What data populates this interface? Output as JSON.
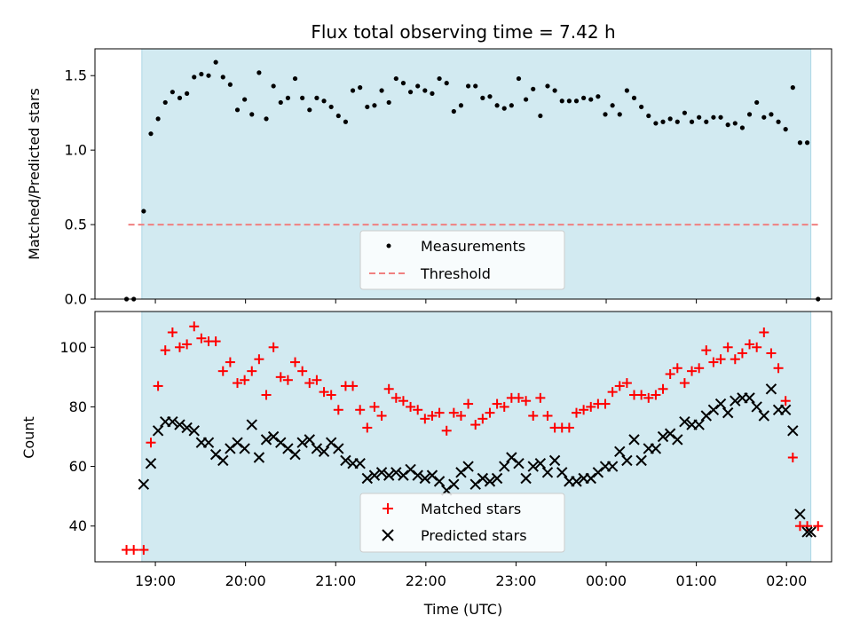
{
  "chart_data": [
    {
      "type": "scatter",
      "title": "Flux total observing time = 7.42 h",
      "xlabel": "",
      "ylabel": "Matched/Predicted stars",
      "ylim": [
        0,
        1.68
      ],
      "yticks": [
        "0.0",
        "0.5",
        "1.0",
        "1.5"
      ],
      "xlim_hours": [
        18.33,
        26.5
      ],
      "observing_window_hours": [
        18.85,
        26.27
      ],
      "observing_window_color": "#add8e6",
      "threshold": {
        "name": "Threshold",
        "value": 0.5,
        "x_range_hours": [
          18.7,
          26.35
        ],
        "color": "#f08080",
        "style": "dashed"
      },
      "legend": [
        "Measurements",
        "Threshold"
      ],
      "legend_position": "lower center",
      "series": [
        {
          "name": "Measurements",
          "color": "#000000",
          "marker": "dot",
          "x_hours": [
            18.68,
            18.76,
            18.87,
            18.95,
            19.03,
            19.11,
            19.19,
            19.27,
            19.35,
            19.43,
            19.51,
            19.59,
            19.67,
            19.75,
            19.83,
            19.91,
            19.99,
            20.07,
            20.15,
            20.23,
            20.31,
            20.39,
            20.47,
            20.55,
            20.63,
            20.71,
            20.79,
            20.87,
            20.95,
            21.03,
            21.11,
            21.19,
            21.27,
            21.35,
            21.43,
            21.51,
            21.59,
            21.67,
            21.75,
            21.83,
            21.91,
            21.99,
            22.07,
            22.15,
            22.23,
            22.31,
            22.39,
            22.47,
            22.55,
            22.63,
            22.71,
            22.79,
            22.87,
            22.95,
            23.03,
            23.11,
            23.19,
            23.27,
            23.35,
            23.43,
            23.51,
            23.59,
            23.67,
            23.75,
            23.83,
            23.91,
            23.99,
            24.07,
            24.15,
            24.23,
            24.31,
            24.39,
            24.47,
            24.55,
            24.63,
            24.71,
            24.79,
            24.87,
            24.95,
            25.03,
            25.11,
            25.19,
            25.27,
            25.35,
            25.43,
            25.51,
            25.59,
            25.67,
            25.75,
            25.83,
            25.91,
            25.99,
            26.07,
            26.15,
            26.23,
            26.35
          ],
          "y": [
            0.0,
            0.0,
            0.59,
            1.11,
            1.21,
            1.32,
            1.39,
            1.35,
            1.38,
            1.49,
            1.51,
            1.5,
            1.59,
            1.49,
            1.44,
            1.27,
            1.34,
            1.24,
            1.52,
            1.21,
            1.43,
            1.32,
            1.35,
            1.48,
            1.35,
            1.27,
            1.35,
            1.33,
            1.29,
            1.23,
            1.19,
            1.4,
            1.42,
            1.29,
            1.3,
            1.4,
            1.32,
            1.48,
            1.45,
            1.39,
            1.43,
            1.4,
            1.38,
            1.48,
            1.45,
            1.26,
            1.3,
            1.43,
            1.43,
            1.35,
            1.36,
            1.3,
            1.28,
            1.3,
            1.48,
            1.34,
            1.41,
            1.23,
            1.43,
            1.4,
            1.33,
            1.33,
            1.33,
            1.35,
            1.34,
            1.36,
            1.24,
            1.3,
            1.24,
            1.4,
            1.35,
            1.29,
            1.23,
            1.18,
            1.19,
            1.21,
            1.19,
            1.25,
            1.19,
            1.22,
            1.19,
            1.22,
            1.22,
            1.17,
            1.18,
            1.15,
            1.24,
            1.32,
            1.22,
            1.24,
            1.19,
            1.14,
            1.42,
            1.05,
            1.05,
            0.0
          ]
        }
      ]
    },
    {
      "type": "scatter",
      "title": "",
      "xlabel": "Time (UTC)",
      "ylabel": "Count",
      "ylim": [
        28,
        112
      ],
      "yticks": [
        "40",
        "60",
        "80",
        "100"
      ],
      "xlim_hours": [
        18.33,
        26.5
      ],
      "xtick_labels": [
        "19:00",
        "20:00",
        "21:00",
        "22:00",
        "23:00",
        "00:00",
        "01:00",
        "02:00"
      ],
      "observing_window_hours": [
        18.85,
        26.27
      ],
      "observing_window_color": "#add8e6",
      "legend": [
        "Matched stars",
        "Predicted stars"
      ],
      "legend_position": "lower center",
      "series": [
        {
          "name": "Matched stars",
          "color": "#ff0000",
          "marker": "plus",
          "x_hours": [
            18.68,
            18.76,
            18.87,
            18.95,
            19.03,
            19.11,
            19.19,
            19.27,
            19.35,
            19.43,
            19.51,
            19.59,
            19.67,
            19.75,
            19.83,
            19.91,
            19.99,
            20.07,
            20.15,
            20.23,
            20.31,
            20.39,
            20.47,
            20.55,
            20.63,
            20.71,
            20.79,
            20.87,
            20.95,
            21.03,
            21.11,
            21.19,
            21.27,
            21.35,
            21.43,
            21.51,
            21.59,
            21.67,
            21.75,
            21.83,
            21.91,
            21.99,
            22.07,
            22.15,
            22.23,
            22.31,
            22.39,
            22.47,
            22.55,
            22.63,
            22.71,
            22.79,
            22.87,
            22.95,
            23.03,
            23.11,
            23.19,
            23.27,
            23.35,
            23.43,
            23.51,
            23.59,
            23.67,
            23.75,
            23.83,
            23.91,
            23.99,
            24.07,
            24.15,
            24.23,
            24.31,
            24.39,
            24.47,
            24.55,
            24.63,
            24.71,
            24.79,
            24.87,
            24.95,
            25.03,
            25.11,
            25.19,
            25.27,
            25.35,
            25.43,
            25.51,
            25.59,
            25.67,
            25.75,
            25.83,
            25.91,
            25.99,
            26.07,
            26.15,
            26.23,
            26.35
          ],
          "y": [
            32,
            32,
            32,
            68,
            87,
            99,
            105,
            100,
            101,
            107,
            103,
            102,
            102,
            92,
            95,
            88,
            89,
            92,
            96,
            84,
            100,
            90,
            89,
            95,
            92,
            88,
            89,
            85,
            84,
            79,
            87,
            87,
            79,
            73,
            80,
            77,
            86,
            83,
            82,
            80,
            79,
            76,
            77,
            78,
            72,
            78,
            77,
            81,
            74,
            76,
            78,
            81,
            80,
            83,
            83,
            82,
            77,
            83,
            77,
            73,
            73,
            73,
            78,
            79,
            80,
            81,
            81,
            85,
            87,
            88,
            84,
            84,
            83,
            84,
            86,
            91,
            93,
            88,
            92,
            93,
            99,
            95,
            96,
            100,
            96,
            98,
            101,
            100,
            105,
            98,
            93,
            82,
            63,
            40,
            40,
            40
          ]
        },
        {
          "name": "Predicted stars",
          "color": "#000000",
          "marker": "x",
          "x_hours": [
            18.87,
            18.95,
            19.03,
            19.11,
            19.19,
            19.27,
            19.35,
            19.43,
            19.51,
            19.59,
            19.67,
            19.75,
            19.83,
            19.91,
            19.99,
            20.07,
            20.15,
            20.23,
            20.31,
            20.39,
            20.47,
            20.55,
            20.63,
            20.71,
            20.79,
            20.87,
            20.95,
            21.03,
            21.11,
            21.19,
            21.27,
            21.35,
            21.43,
            21.51,
            21.59,
            21.67,
            21.75,
            21.83,
            21.91,
            21.99,
            22.07,
            22.15,
            22.23,
            22.31,
            22.39,
            22.47,
            22.55,
            22.63,
            22.71,
            22.79,
            22.87,
            22.95,
            23.03,
            23.11,
            23.19,
            23.27,
            23.35,
            23.43,
            23.51,
            23.59,
            23.67,
            23.75,
            23.83,
            23.91,
            23.99,
            24.07,
            24.15,
            24.23,
            24.31,
            24.39,
            24.47,
            24.55,
            24.63,
            24.71,
            24.79,
            24.87,
            24.95,
            25.03,
            25.11,
            25.19,
            25.27,
            25.35,
            25.43,
            25.51,
            25.59,
            25.67,
            25.75,
            25.83,
            25.91,
            25.99,
            26.07,
            26.15,
            26.23,
            26.27
          ],
          "y": [
            54,
            61,
            72,
            75,
            75,
            74,
            73,
            72,
            68,
            68,
            64,
            62,
            66,
            68,
            66,
            74,
            63,
            69,
            70,
            68,
            66,
            64,
            68,
            69,
            66,
            65,
            68,
            66,
            62,
            61,
            61,
            56,
            57,
            58,
            57,
            58,
            57,
            59,
            57,
            56,
            57,
            55,
            52,
            54,
            58,
            60,
            54,
            56,
            55,
            56,
            60,
            63,
            61,
            56,
            60,
            61,
            58,
            62,
            58,
            55,
            55,
            56,
            56,
            58,
            60,
            60,
            65,
            62,
            69,
            62,
            66,
            66,
            70,
            71,
            69,
            75,
            74,
            74,
            77,
            79,
            81,
            78,
            82,
            83,
            83,
            80,
            77,
            86,
            79,
            79,
            72,
            44,
            38,
            38
          ]
        }
      ]
    }
  ]
}
